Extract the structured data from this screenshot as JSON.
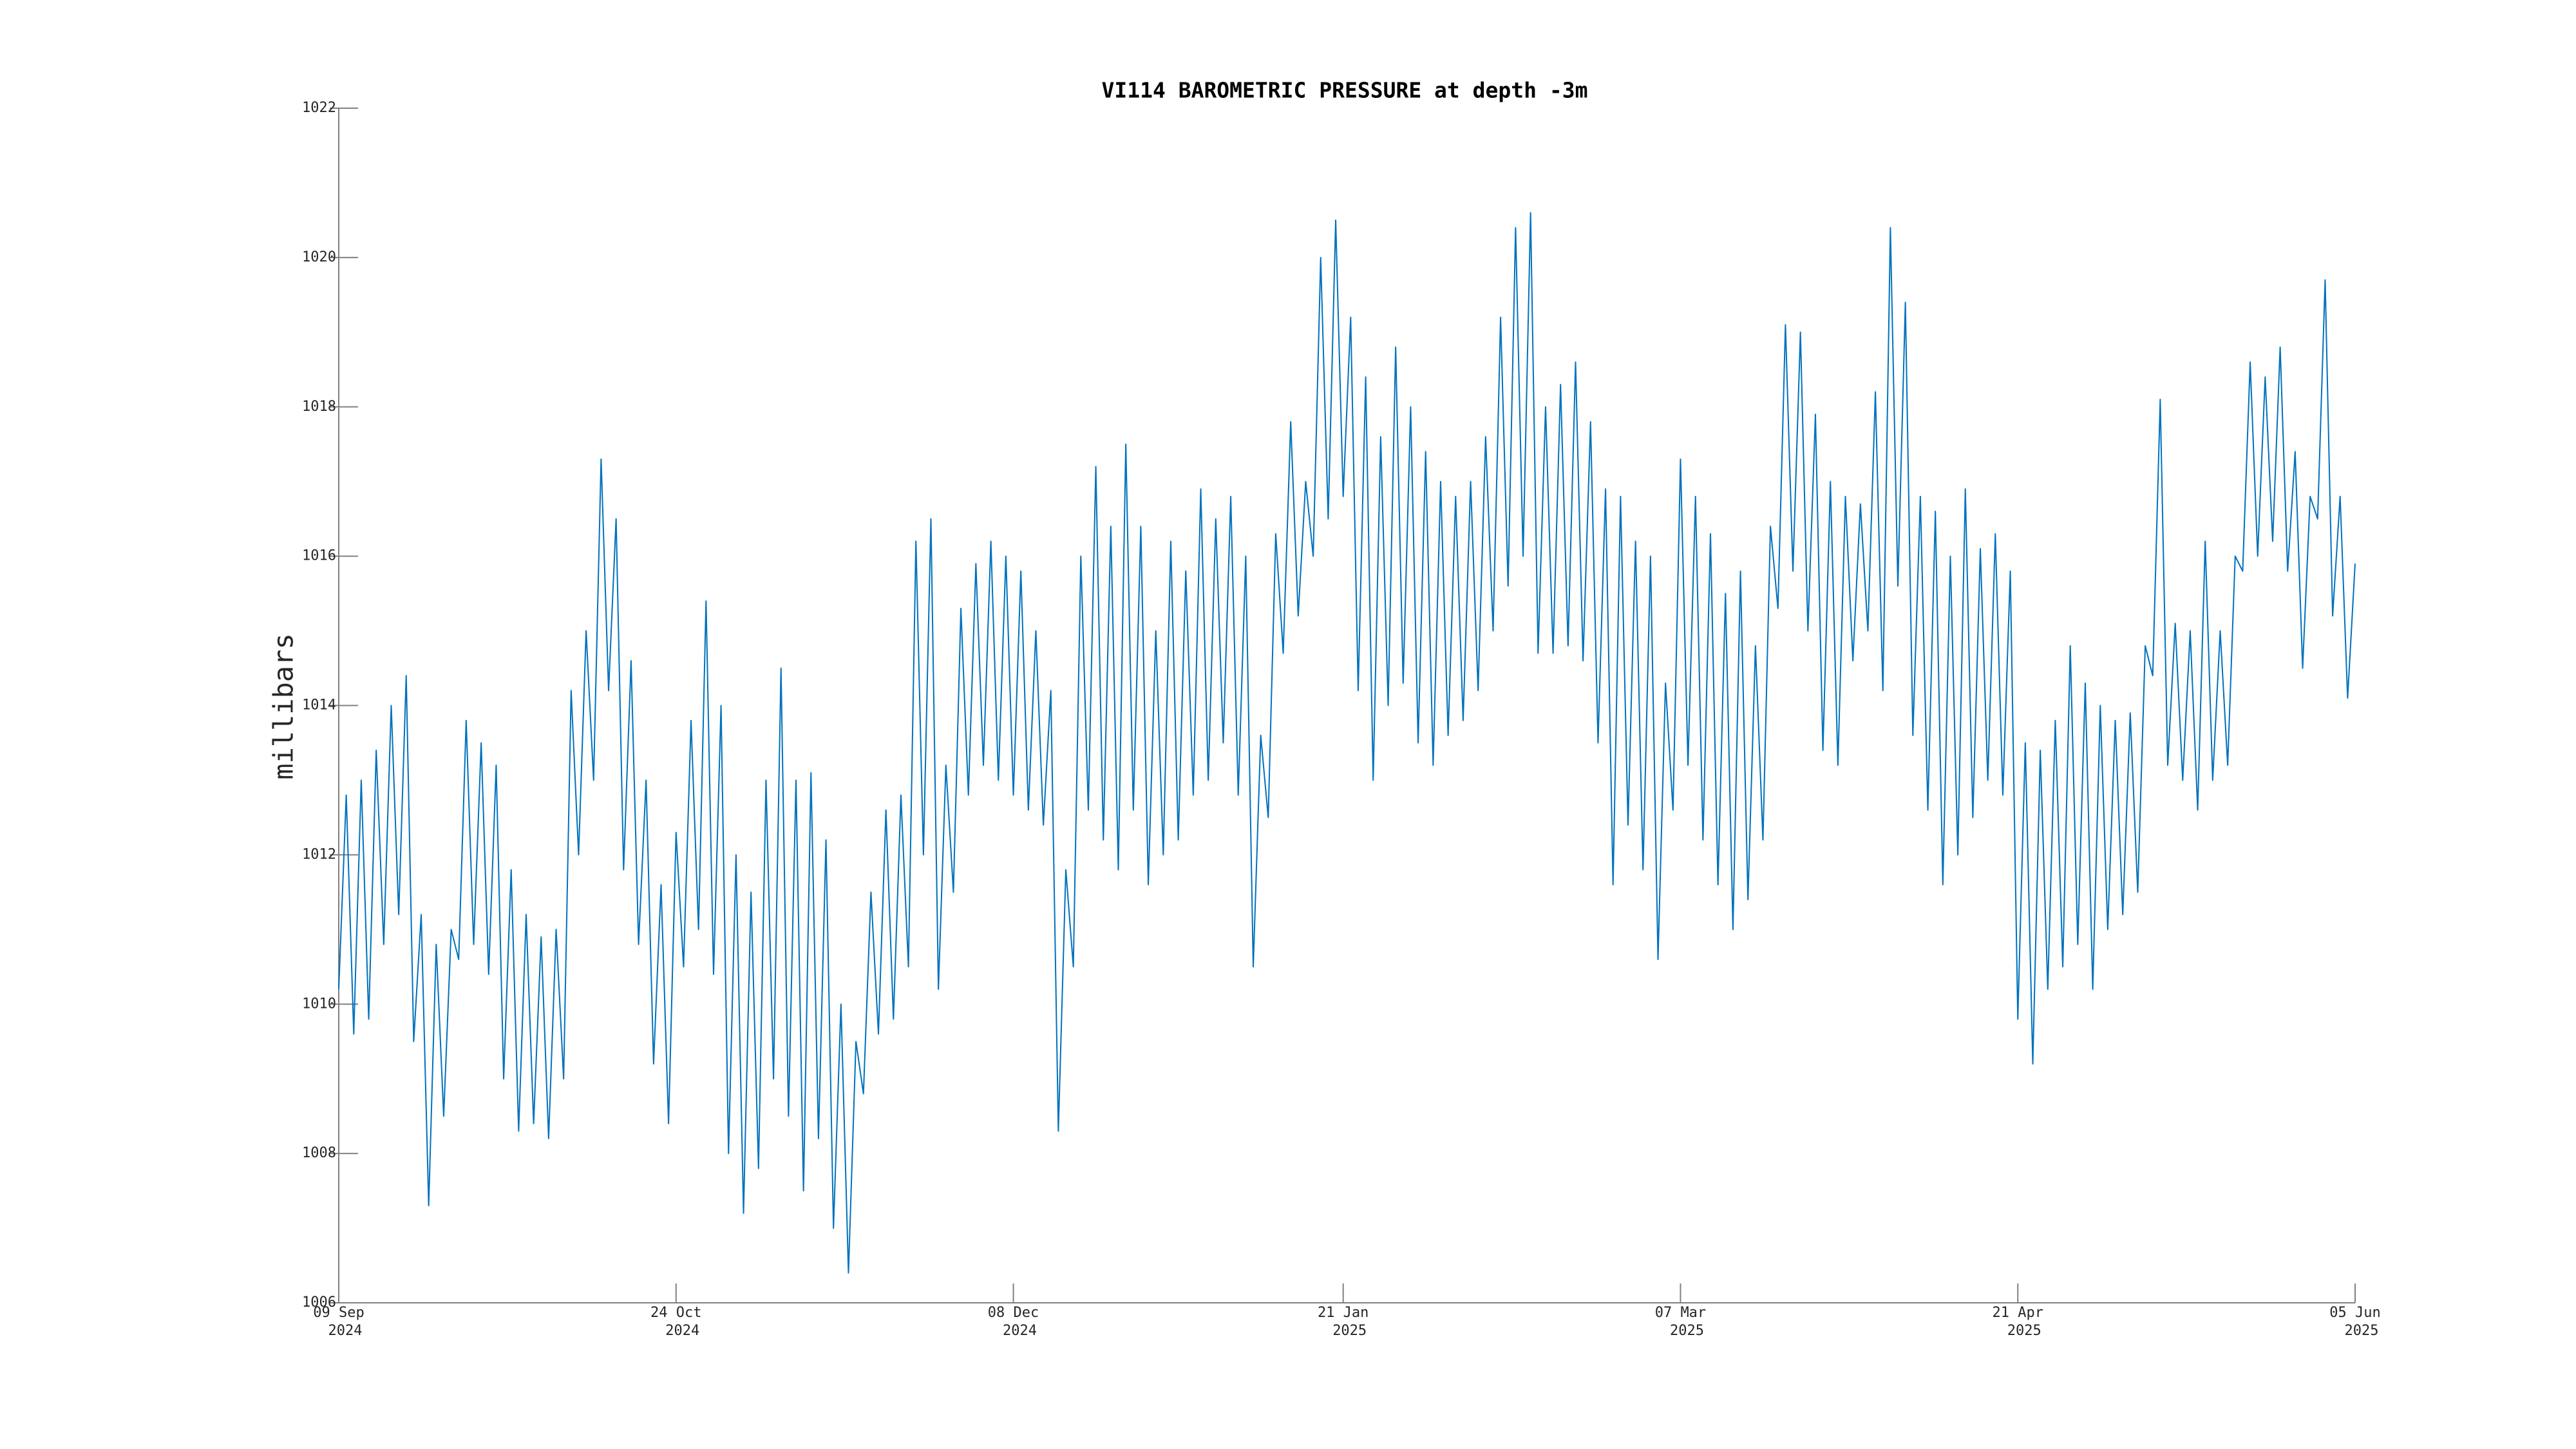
{
  "chart_data": {
    "type": "line",
    "title": "VI114 BAROMETRIC PRESSURE at depth -3m",
    "ylabel": "millibars",
    "color": "#0072bd",
    "ylim": [
      1006,
      1022
    ],
    "yticks": [
      1006,
      1008,
      1010,
      1012,
      1014,
      1016,
      1018,
      1020,
      1022
    ],
    "xlim": [
      "2024-09-09",
      "2025-06-05"
    ],
    "xticks": [
      {
        "value": "2024-09-09",
        "label": [
          "09 Sep",
          "2024"
        ]
      },
      {
        "value": "2024-10-24",
        "label": [
          "24 Oct",
          "2024"
        ]
      },
      {
        "value": "2024-12-08",
        "label": [
          "08 Dec",
          "2024"
        ]
      },
      {
        "value": "2025-01-21",
        "label": [
          "21 Jan",
          "2025"
        ]
      },
      {
        "value": "2025-03-07",
        "label": [
          "07 Mar",
          "2025"
        ]
      },
      {
        "value": "2025-04-21",
        "label": [
          "21 Apr",
          "2025"
        ]
      },
      {
        "value": "2025-06-05",
        "label": [
          "05 Jun",
          "2025"
        ]
      }
    ],
    "x": [
      "2024-09-09",
      "2024-09-10",
      "2024-09-11",
      "2024-09-12",
      "2024-09-13",
      "2024-09-14",
      "2024-09-15",
      "2024-09-16",
      "2024-09-17",
      "2024-09-18",
      "2024-09-19",
      "2024-09-20",
      "2024-09-21",
      "2024-09-22",
      "2024-09-23",
      "2024-09-24",
      "2024-09-25",
      "2024-09-26",
      "2024-09-27",
      "2024-09-28",
      "2024-09-29",
      "2024-09-30",
      "2024-10-01",
      "2024-10-02",
      "2024-10-03",
      "2024-10-04",
      "2024-10-05",
      "2024-10-06",
      "2024-10-07",
      "2024-10-08",
      "2024-10-09",
      "2024-10-10",
      "2024-10-11",
      "2024-10-12",
      "2024-10-13",
      "2024-10-14",
      "2024-10-15",
      "2024-10-16",
      "2024-10-17",
      "2024-10-18",
      "2024-10-19",
      "2024-10-20",
      "2024-10-21",
      "2024-10-22",
      "2024-10-23",
      "2024-10-24",
      "2024-10-25",
      "2024-10-26",
      "2024-10-27",
      "2024-10-28",
      "2024-10-29",
      "2024-10-30",
      "2024-10-31",
      "2024-11-01",
      "2024-11-02",
      "2024-11-03",
      "2024-11-04",
      "2024-11-05",
      "2024-11-06",
      "2024-11-07",
      "2024-11-08",
      "2024-11-09",
      "2024-11-10",
      "2024-11-11",
      "2024-11-12",
      "2024-11-13",
      "2024-11-14",
      "2024-11-15",
      "2024-11-16",
      "2024-11-17",
      "2024-11-18",
      "2024-11-19",
      "2024-11-20",
      "2024-11-21",
      "2024-11-22",
      "2024-11-23",
      "2024-11-24",
      "2024-11-25",
      "2024-11-26",
      "2024-11-27",
      "2024-11-28",
      "2024-11-29",
      "2024-11-30",
      "2024-12-01",
      "2024-12-02",
      "2024-12-03",
      "2024-12-04",
      "2024-12-05",
      "2024-12-06",
      "2024-12-07",
      "2024-12-08",
      "2024-12-09",
      "2024-12-10",
      "2024-12-11",
      "2024-12-12",
      "2024-12-13",
      "2024-12-14",
      "2024-12-15",
      "2024-12-16",
      "2024-12-17",
      "2024-12-18",
      "2024-12-19",
      "2024-12-20",
      "2024-12-21",
      "2024-12-22",
      "2024-12-23",
      "2024-12-24",
      "2024-12-25",
      "2024-12-26",
      "2024-12-27",
      "2024-12-28",
      "2024-12-29",
      "2024-12-30",
      "2024-12-31",
      "2025-01-01",
      "2025-01-02",
      "2025-01-03",
      "2025-01-04",
      "2025-01-05",
      "2025-01-06",
      "2025-01-07",
      "2025-01-08",
      "2025-01-09",
      "2025-01-10",
      "2025-01-11",
      "2025-01-12",
      "2025-01-13",
      "2025-01-14",
      "2025-01-15",
      "2025-01-16",
      "2025-01-17",
      "2025-01-18",
      "2025-01-19",
      "2025-01-20",
      "2025-01-21",
      "2025-01-22",
      "2025-01-23",
      "2025-01-24",
      "2025-01-25",
      "2025-01-26",
      "2025-01-27",
      "2025-01-28",
      "2025-01-29",
      "2025-01-30",
      "2025-01-31",
      "2025-02-01",
      "2025-02-02",
      "2025-02-03",
      "2025-02-04",
      "2025-02-05",
      "2025-02-06",
      "2025-02-07",
      "2025-02-08",
      "2025-02-09",
      "2025-02-10",
      "2025-02-11",
      "2025-02-12",
      "2025-02-13",
      "2025-02-14",
      "2025-02-15",
      "2025-02-16",
      "2025-02-17",
      "2025-02-18",
      "2025-02-19",
      "2025-02-20",
      "2025-02-21",
      "2025-02-22",
      "2025-02-23",
      "2025-02-24",
      "2025-02-25",
      "2025-02-26",
      "2025-02-27",
      "2025-02-28",
      "2025-03-01",
      "2025-03-02",
      "2025-03-03",
      "2025-03-04",
      "2025-03-05",
      "2025-03-06",
      "2025-03-07",
      "2025-03-08",
      "2025-03-09",
      "2025-03-10",
      "2025-03-11",
      "2025-03-12",
      "2025-03-13",
      "2025-03-14",
      "2025-03-15",
      "2025-03-16",
      "2025-03-17",
      "2025-03-18",
      "2025-03-19",
      "2025-03-20",
      "2025-03-21",
      "2025-03-22",
      "2025-03-23",
      "2025-03-24",
      "2025-03-25",
      "2025-03-26",
      "2025-03-27",
      "2025-03-28",
      "2025-03-29",
      "2025-03-30",
      "2025-03-31",
      "2025-04-01",
      "2025-04-02",
      "2025-04-03",
      "2025-04-04",
      "2025-04-05",
      "2025-04-06",
      "2025-04-07",
      "2025-04-08",
      "2025-04-09",
      "2025-04-10",
      "2025-04-11",
      "2025-04-12",
      "2025-04-13",
      "2025-04-14",
      "2025-04-15",
      "2025-04-16",
      "2025-04-17",
      "2025-04-18",
      "2025-04-19",
      "2025-04-20",
      "2025-04-21",
      "2025-04-22",
      "2025-04-23",
      "2025-04-24",
      "2025-04-25",
      "2025-04-26",
      "2025-04-27",
      "2025-04-28",
      "2025-04-29",
      "2025-04-30",
      "2025-05-01",
      "2025-05-02",
      "2025-05-03",
      "2025-05-04",
      "2025-05-05",
      "2025-05-06",
      "2025-05-07",
      "2025-05-08",
      "2025-05-09",
      "2025-05-10",
      "2025-05-11",
      "2025-05-12",
      "2025-05-13",
      "2025-05-14",
      "2025-05-15",
      "2025-05-16",
      "2025-05-17",
      "2025-05-18",
      "2025-05-19",
      "2025-05-20",
      "2025-05-21",
      "2025-05-22",
      "2025-05-23",
      "2025-05-24",
      "2025-05-25",
      "2025-05-26",
      "2025-05-27",
      "2025-05-28",
      "2025-05-29",
      "2025-05-30",
      "2025-05-31",
      "2025-06-01",
      "2025-06-02",
      "2025-06-03",
      "2025-06-04",
      "2025-06-05"
    ],
    "values": [
      1010.2,
      1012.8,
      1009.6,
      1013.0,
      1009.8,
      1013.4,
      1010.8,
      1014.0,
      1011.2,
      1014.4,
      1009.5,
      1011.2,
      1007.3,
      1010.8,
      1008.5,
      1011.0,
      1010.6,
      1013.8,
      1010.8,
      1013.5,
      1010.4,
      1013.2,
      1009.0,
      1011.8,
      1008.3,
      1011.2,
      1008.4,
      1010.9,
      1008.2,
      1011.0,
      1009.0,
      1014.2,
      1012.0,
      1015.0,
      1013.0,
      1017.3,
      1014.2,
      1016.5,
      1011.8,
      1014.6,
      1010.8,
      1013.0,
      1009.2,
      1011.6,
      1008.4,
      1012.3,
      1010.5,
      1013.8,
      1011.0,
      1015.4,
      1010.4,
      1014.0,
      1008.0,
      1012.0,
      1007.2,
      1011.5,
      1007.8,
      1013.0,
      1009.0,
      1014.5,
      1008.5,
      1013.0,
      1007.5,
      1013.1,
      1008.2,
      1012.2,
      1007.0,
      1010.0,
      1006.4,
      1009.5,
      1008.8,
      1011.5,
      1009.6,
      1012.6,
      1009.8,
      1012.8,
      1010.5,
      1016.2,
      1012.0,
      1016.5,
      1010.2,
      1013.2,
      1011.5,
      1015.3,
      1012.8,
      1015.9,
      1013.2,
      1016.2,
      1013.0,
      1016.0,
      1012.8,
      1015.8,
      1012.6,
      1015.0,
      1012.4,
      1014.2,
      1008.3,
      1011.8,
      1010.5,
      1016.0,
      1012.6,
      1017.2,
      1012.2,
      1016.4,
      1011.8,
      1017.5,
      1012.6,
      1016.4,
      1011.6,
      1015.0,
      1012.0,
      1016.2,
      1012.2,
      1015.8,
      1012.8,
      1016.9,
      1013.0,
      1016.5,
      1013.5,
      1016.8,
      1012.8,
      1016.0,
      1010.5,
      1013.6,
      1012.5,
      1016.3,
      1014.7,
      1017.8,
      1015.2,
      1017.0,
      1016.0,
      1020.0,
      1016.5,
      1020.5,
      1016.8,
      1019.2,
      1014.2,
      1018.4,
      1013.0,
      1017.6,
      1014.0,
      1018.8,
      1014.3,
      1018.0,
      1013.5,
      1017.4,
      1013.2,
      1017.0,
      1013.6,
      1016.8,
      1013.8,
      1017.0,
      1014.2,
      1017.6,
      1015.0,
      1019.2,
      1015.6,
      1020.4,
      1016.0,
      1020.6,
      1014.7,
      1018.0,
      1014.7,
      1018.3,
      1014.8,
      1018.6,
      1014.6,
      1017.8,
      1013.5,
      1016.9,
      1011.6,
      1016.8,
      1012.4,
      1016.2,
      1011.8,
      1016.0,
      1010.6,
      1014.3,
      1012.6,
      1017.3,
      1013.2,
      1016.8,
      1012.2,
      1016.3,
      1011.6,
      1015.5,
      1011.0,
      1015.8,
      1011.4,
      1014.8,
      1012.2,
      1016.4,
      1015.3,
      1019.1,
      1015.8,
      1019.0,
      1015.0,
      1017.9,
      1013.4,
      1017.0,
      1013.2,
      1016.8,
      1014.6,
      1016.7,
      1015.0,
      1018.2,
      1014.2,
      1020.4,
      1015.6,
      1019.4,
      1013.6,
      1016.8,
      1012.6,
      1016.6,
      1011.6,
      1016.0,
      1012.0,
      1016.9,
      1012.5,
      1016.1,
      1013.0,
      1016.3,
      1012.8,
      1015.8,
      1009.8,
      1013.5,
      1009.2,
      1013.4,
      1010.2,
      1013.8,
      1010.5,
      1014.8,
      1010.8,
      1014.3,
      1010.2,
      1014.0,
      1011.0,
      1013.8,
      1011.2,
      1013.9,
      1011.5,
      1014.8,
      1014.4,
      1018.1,
      1013.2,
      1015.1,
      1013.0,
      1015.0,
      1012.6,
      1016.2,
      1013.0,
      1015.0,
      1013.2,
      1016.0,
      1015.8,
      1018.6,
      1016.0,
      1018.4,
      1016.2,
      1018.8,
      1015.8,
      1017.4,
      1014.5,
      1016.8,
      1016.5,
      1019.7,
      1015.2,
      1016.8,
      1014.1,
      1015.9
    ]
  }
}
